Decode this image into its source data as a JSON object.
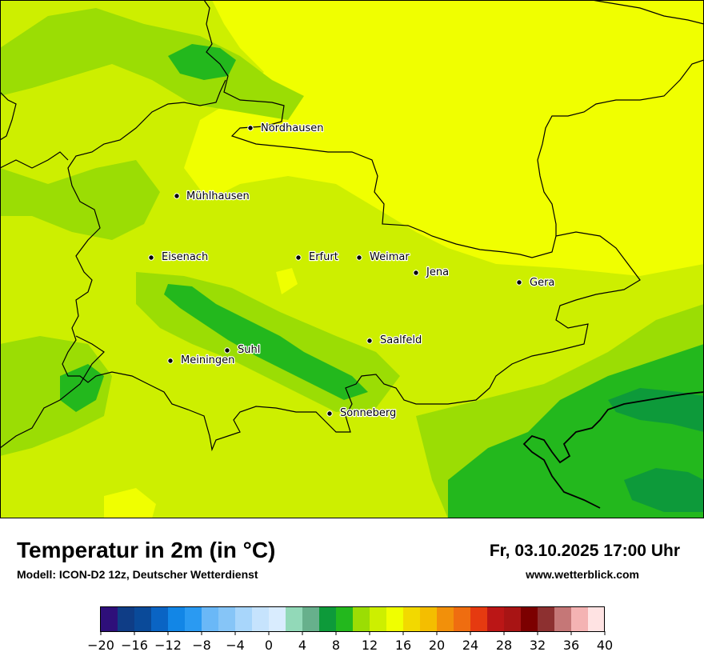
{
  "title": "Temperatur in 2m (in °C)",
  "subtitle": "Modell: ICON-D2 12z, Deutscher Wetterdienst",
  "datetime": "Fr, 03.10.2025 17:00 Uhr",
  "website": "www.wetterblick.com",
  "cities": [
    {
      "name": "Nordhausen"
    },
    {
      "name": "Mühlhausen"
    },
    {
      "name": "Eisenach"
    },
    {
      "name": "Erfurt"
    },
    {
      "name": "Weimar"
    },
    {
      "name": "Jena"
    },
    {
      "name": "Gera"
    },
    {
      "name": "Saalfeld"
    },
    {
      "name": "Suhl"
    },
    {
      "name": "Meiningen"
    },
    {
      "name": "Sonneberg"
    }
  ],
  "colorbar": {
    "min": -20,
    "max": 40,
    "step": 2,
    "tick_labels": [
      "−20",
      "−16",
      "−12",
      "−8",
      "−4",
      "0",
      "4",
      "8",
      "12",
      "16",
      "20",
      "24",
      "28",
      "32",
      "36",
      "40"
    ],
    "colors": [
      "#2e0f7a",
      "#0f3d86",
      "#0a4a99",
      "#0a64c4",
      "#1286e6",
      "#2a9af2",
      "#6ab8f7",
      "#86c5f7",
      "#a8d6fb",
      "#c6e3fd",
      "#d9ecfe",
      "#92d9b8",
      "#67b08c",
      "#0d9a3a",
      "#23b81d",
      "#9bdd04",
      "#cdef00",
      "#f0ff00",
      "#f2d900",
      "#f4be00",
      "#f2900a",
      "#ef6d10",
      "#e63a10",
      "#bb1616",
      "#a81414",
      "#7c0000",
      "#8d3030",
      "#c57777",
      "#f4b3b3",
      "#ffe3e3"
    ]
  }
}
